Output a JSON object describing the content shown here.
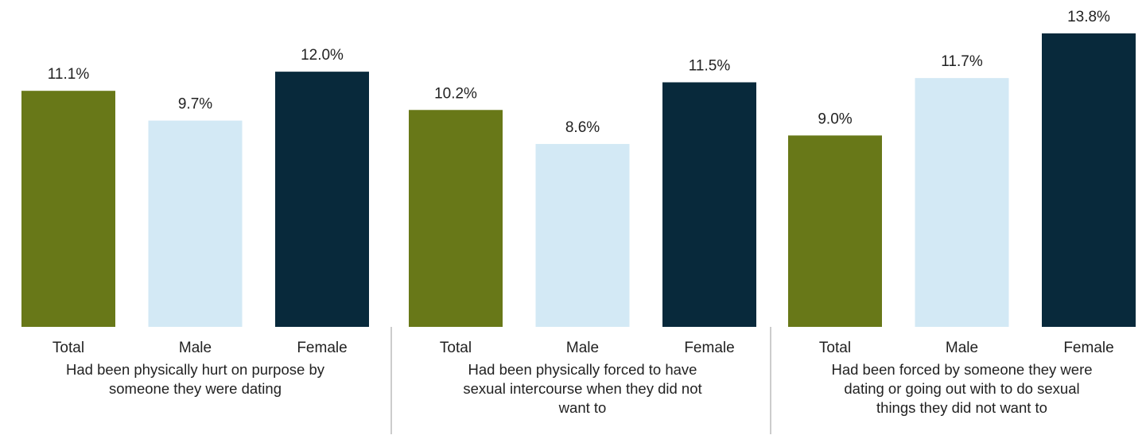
{
  "chart_data": {
    "type": "bar",
    "categories": [
      "Had been physically hurt on purpose by someone they were dating",
      "Had been physically forced to have sexual intercourse when they did not want to",
      "Had been forced by someone they were dating or going out with to do sexual things they did not want to"
    ],
    "series": [
      {
        "name": "Total",
        "color": "#687818",
        "values": [
          11.1,
          10.2,
          9.0
        ],
        "value_labels": [
          "11.1%",
          "10.2%",
          "9.0%"
        ]
      },
      {
        "name": "Male",
        "color": "#d3e9f5",
        "values": [
          9.7,
          8.6,
          11.7
        ],
        "value_labels": [
          "9.7%",
          "8.6%",
          "11.7%"
        ]
      },
      {
        "name": "Female",
        "color": "#08293b",
        "values": [
          12.0,
          11.5,
          13.8
        ],
        "value_labels": [
          "12.0%",
          "11.5%",
          "13.8%"
        ]
      }
    ]
  }
}
